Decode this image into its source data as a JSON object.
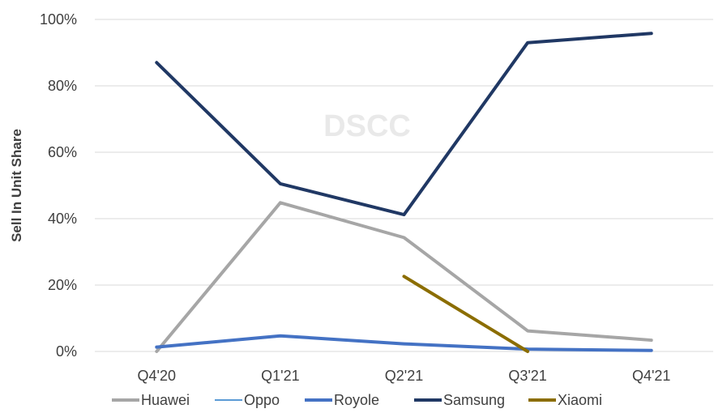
{
  "chart_data": {
    "type": "line",
    "title": "",
    "xlabel": "",
    "ylabel": "Sell In Unit Share",
    "watermark": "DSCC",
    "categories": [
      "Q4'20",
      "Q1'21",
      "Q2'21",
      "Q3'21",
      "Q4'21"
    ],
    "ylim": [
      0,
      100
    ],
    "yticks": [
      "0%",
      "20%",
      "40%",
      "60%",
      "80%",
      "100%"
    ],
    "grid": true,
    "legend": "bottom",
    "series": [
      {
        "name": "Huawei",
        "color": "#a6a6a6",
        "values": [
          0,
          44.8,
          34.3,
          6.2,
          3.4
        ]
      },
      {
        "name": "Oppo",
        "color": "#5b9bd5",
        "values": [
          1.2,
          4.5,
          2.3,
          0.7,
          0.3
        ]
      },
      {
        "name": "Royole",
        "color": "#4472c4",
        "values": [
          1.3,
          4.7,
          2.3,
          0.7,
          0.3
        ]
      },
      {
        "name": "Samsung",
        "color": "#203864",
        "values": [
          87,
          50.5,
          41.2,
          93,
          95.8
        ]
      },
      {
        "name": "Xiaomi",
        "color": "#8b6d00",
        "values": [
          null,
          null,
          22.6,
          0,
          null
        ]
      }
    ]
  }
}
